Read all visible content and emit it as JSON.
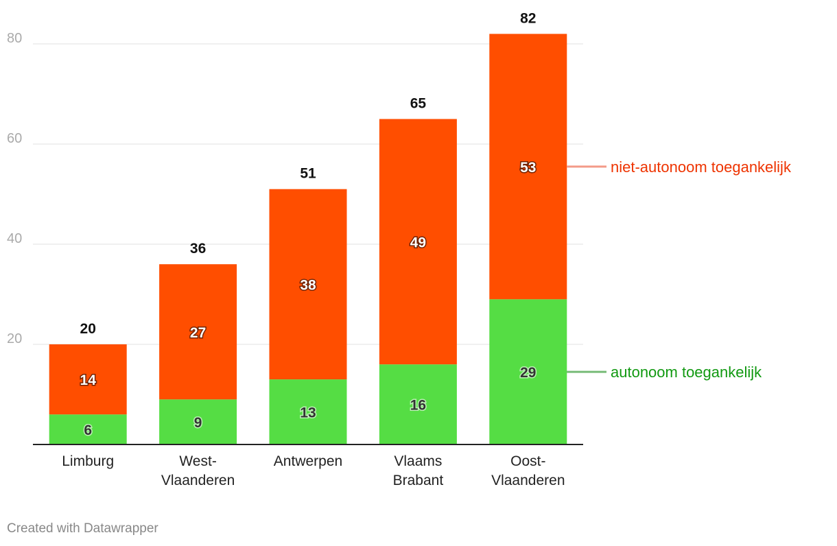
{
  "chart_data": {
    "type": "bar",
    "stacked": true,
    "categories": [
      [
        "Limburg"
      ],
      [
        "West-",
        "Vlaanderen"
      ],
      [
        "Antwerpen"
      ],
      [
        "Vlaams",
        "Brabant"
      ],
      [
        "Oost-",
        "Vlaanderen"
      ]
    ],
    "series": [
      {
        "name": "autonoom toegankelijk",
        "color": "#55dd44",
        "label_color": "#119911",
        "line_color": "#77bb77",
        "values": [
          6,
          9,
          13,
          16,
          29
        ]
      },
      {
        "name": "niet-autonoom toegankelijk",
        "color": "#ff4e00",
        "label_color": "#ee3300",
        "line_color": "#f39a88",
        "values": [
          14,
          27,
          38,
          49,
          53
        ]
      }
    ],
    "totals": [
      20,
      36,
      51,
      65,
      82
    ],
    "ylim": [
      0,
      82
    ],
    "yticks": [
      20,
      40,
      60,
      80
    ],
    "grid": true,
    "legend": "right, inline next to last bar",
    "title": "",
    "xlabel": "",
    "ylabel": ""
  },
  "footer": "Created with Datawrapper"
}
